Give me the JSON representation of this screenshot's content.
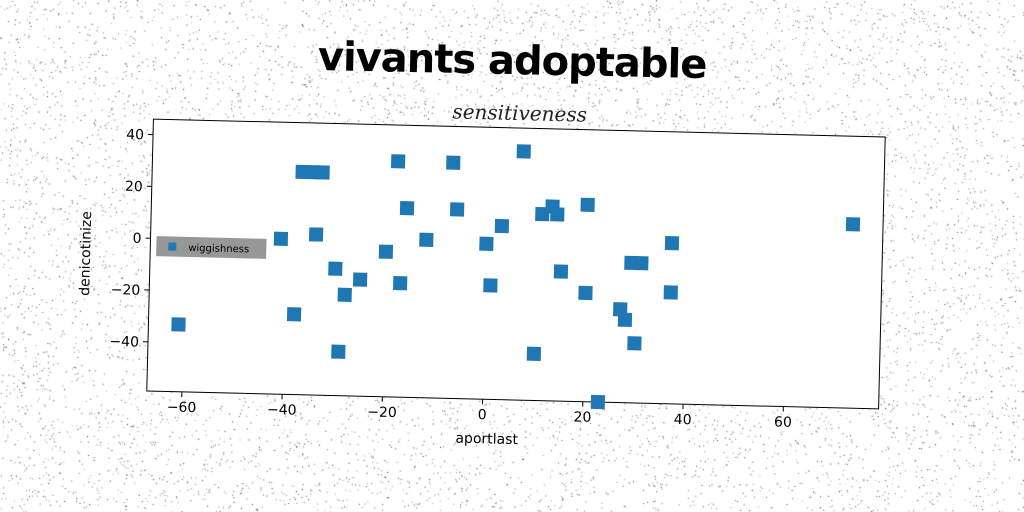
{
  "page": {
    "main_title": "vivants adoptable"
  },
  "chart_data": {
    "type": "scatter",
    "title": "sensitiveness",
    "xlabel": "aportlast",
    "ylabel": "denicotinize",
    "xlim": [
      -67,
      79
    ],
    "ylim": [
      -59,
      46
    ],
    "xticks": [
      -60,
      -40,
      -20,
      0,
      20,
      40,
      60
    ],
    "yticks": [
      40,
      20,
      0,
      -20,
      -40
    ],
    "legend": {
      "placement": "center-left",
      "entries": [
        "wiggishness"
      ]
    },
    "grid": false,
    "marker": "square",
    "color": "#1f77b4",
    "series": [
      {
        "name": "wiggishness",
        "points": [
          [
            -61,
            -33
          ],
          [
            -41,
            1
          ],
          [
            -38,
            -28
          ],
          [
            -37,
            27
          ],
          [
            -35,
            27
          ],
          [
            -34,
            3
          ],
          [
            -33,
            27
          ],
          [
            -30,
            -10
          ],
          [
            -29,
            -42
          ],
          [
            -28,
            -20
          ],
          [
            -25,
            -14
          ],
          [
            -20,
            -3
          ],
          [
            -18,
            32
          ],
          [
            -17,
            -15
          ],
          [
            -16,
            14
          ],
          [
            -12,
            2
          ],
          [
            -7,
            32
          ],
          [
            -6,
            14
          ],
          [
            0,
            1
          ],
          [
            1,
            -15
          ],
          [
            3,
            8
          ],
          [
            7,
            37
          ],
          [
            10,
            -41
          ],
          [
            11,
            13
          ],
          [
            13,
            16
          ],
          [
            14,
            13
          ],
          [
            15,
            -9
          ],
          [
            20,
            -17
          ],
          [
            20,
            17
          ],
          [
            23,
            -59
          ],
          [
            27,
            -23
          ],
          [
            28,
            -27
          ],
          [
            29,
            -5
          ],
          [
            30,
            -36
          ],
          [
            31,
            -5
          ],
          [
            37,
            3
          ],
          [
            37,
            -16
          ],
          [
            73,
            12
          ]
        ]
      }
    ]
  }
}
